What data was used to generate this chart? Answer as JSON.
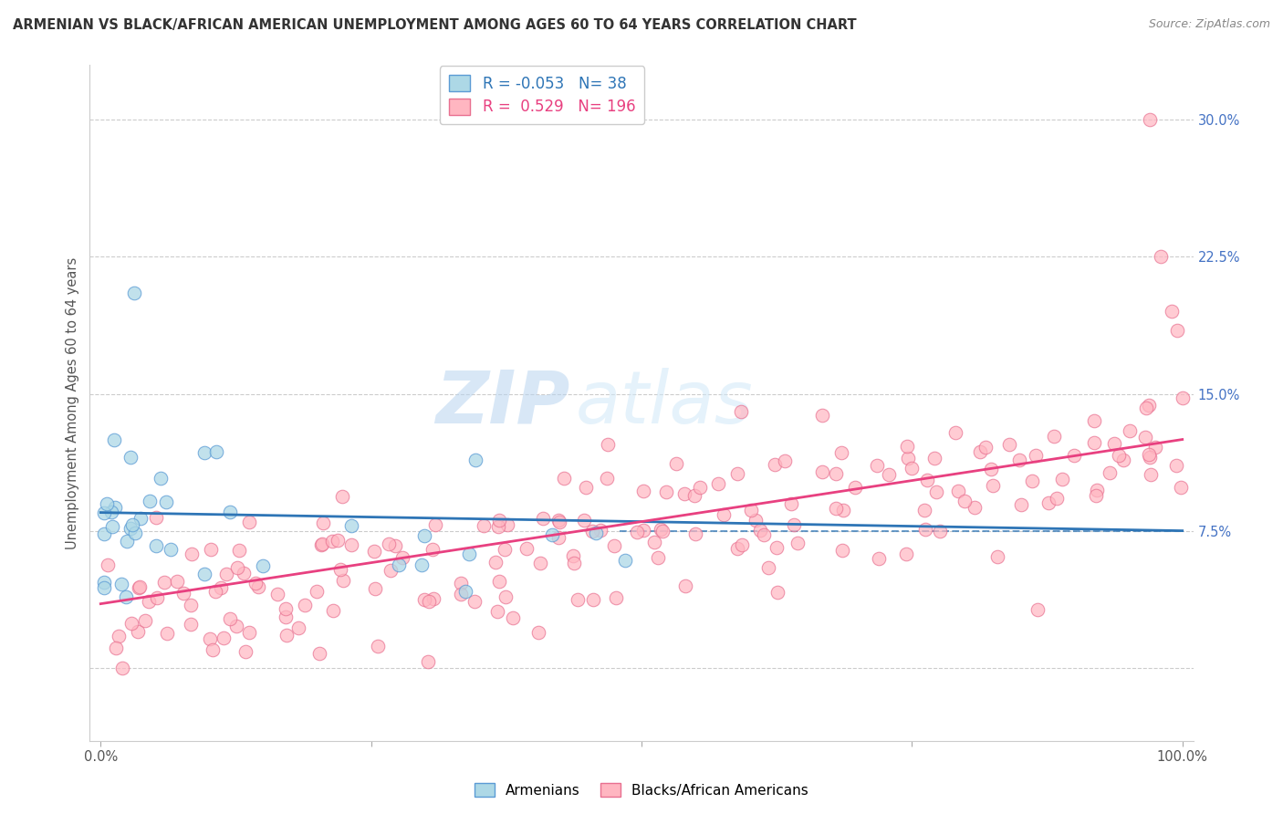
{
  "title": "ARMENIAN VS BLACK/AFRICAN AMERICAN UNEMPLOYMENT AMONG AGES 60 TO 64 YEARS CORRELATION CHART",
  "source": "Source: ZipAtlas.com",
  "ylabel": "Unemployment Among Ages 60 to 64 years",
  "xlim": [
    0,
    100
  ],
  "ylim": [
    -4,
    33
  ],
  "yticks": [
    0,
    7.5,
    15.0,
    22.5,
    30.0
  ],
  "ytick_labels": [
    "",
    "7.5%",
    "15.0%",
    "22.5%",
    "30.0%"
  ],
  "armenian_color": "#ADD8E6",
  "armenian_edge": "#5B9BD5",
  "black_color": "#FFB6C1",
  "black_edge": "#E87090",
  "trend_armenian_color": "#2E75B6",
  "trend_black_color": "#E84080",
  "trend_armenian_dash_color": "#2E75B6",
  "R_armenian": -0.053,
  "N_armenian": 38,
  "R_black": 0.529,
  "N_black": 196,
  "watermark_zip": "ZIP",
  "watermark_atlas": "atlas",
  "legend_label_armenian": "Armenians",
  "legend_label_black": "Blacks/African Americans"
}
